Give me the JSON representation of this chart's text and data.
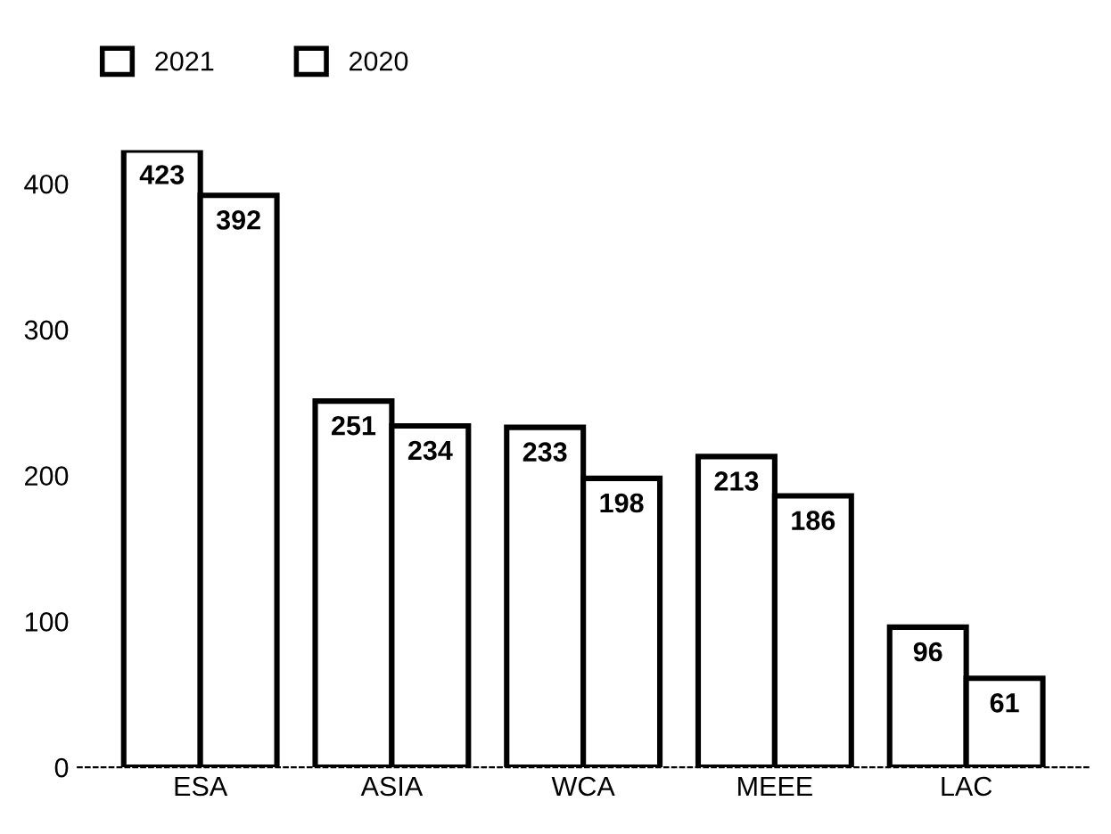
{
  "chart_data": {
    "type": "bar",
    "categories": [
      "ESA",
      "ASIA",
      "WCA",
      "MEEE",
      "LAC"
    ],
    "series": [
      {
        "name": "2021",
        "color": "#ffffff",
        "values": [
          423,
          251,
          233,
          213,
          96
        ]
      },
      {
        "name": "2020",
        "color": "#ffffff",
        "values": [
          392,
          234,
          198,
          186,
          61
        ]
      }
    ],
    "ylim": [
      0,
      423
    ],
    "yticks": [
      0,
      100,
      200,
      300,
      400
    ],
    "grid": false,
    "legend": "top left",
    "data_labels": true
  }
}
